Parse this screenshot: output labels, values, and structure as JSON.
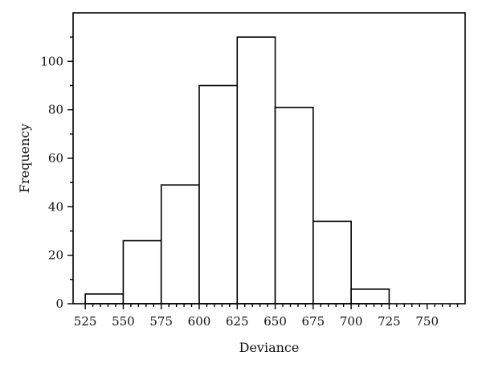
{
  "chart_data": {
    "type": "bar",
    "title": "",
    "xlabel": "Deviance",
    "ylabel": "Frequency",
    "bins": [
      {
        "start": 525,
        "end": 550,
        "value": 4
      },
      {
        "start": 550,
        "end": 575,
        "value": 26
      },
      {
        "start": 575,
        "end": 600,
        "value": 49
      },
      {
        "start": 600,
        "end": 625,
        "value": 90
      },
      {
        "start": 625,
        "end": 650,
        "value": 110
      },
      {
        "start": 650,
        "end": 675,
        "value": 81
      },
      {
        "start": 675,
        "end": 700,
        "value": 34
      },
      {
        "start": 700,
        "end": 725,
        "value": 6
      }
    ],
    "xlim": [
      517,
      775
    ],
    "ylim": [
      0,
      120
    ],
    "x_ticks": [
      "525",
      "550",
      "575",
      "600",
      "625",
      "650",
      "675",
      "700",
      "725",
      "750"
    ],
    "y_ticks": [
      "0",
      "20",
      "40",
      "60",
      "80",
      "100"
    ],
    "grid": false,
    "legend": "none"
  }
}
